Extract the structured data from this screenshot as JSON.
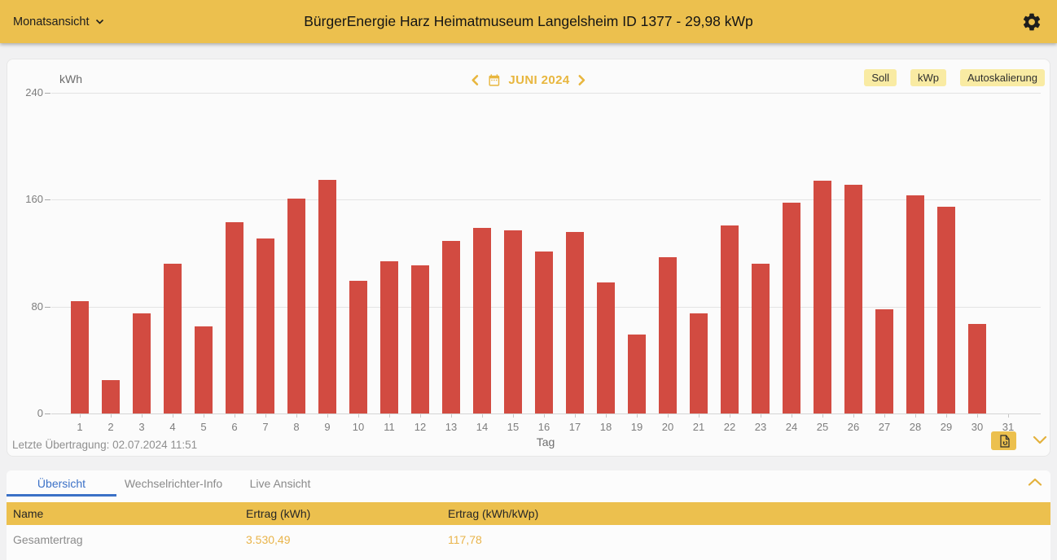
{
  "topbar": {
    "view_selector_label": "Monatsansicht",
    "title": "BürgerEnergie Harz Heimatmuseum Langelsheim ID 1377 - 29,98 kWp"
  },
  "chart_panel": {
    "unit_label": "kWh",
    "month_nav_label": "JUNI 2024",
    "button_soll": "Soll",
    "button_kwp": "kWp",
    "button_autoscale": "Autoskalierung",
    "xaxis_label": "Tag",
    "last_transmission": "Letzte Übertragung: 02.07.2024 11:51"
  },
  "chart_data": {
    "type": "bar",
    "title": "JUNI 2024",
    "xlabel": "Tag",
    "ylabel": "kWh",
    "ylim": [
      0,
      240
    ],
    "yticks": [
      0,
      80,
      160,
      240
    ],
    "grid": true,
    "legend": "none",
    "bar_color": "#d24b41",
    "categories": [
      1,
      2,
      3,
      4,
      5,
      6,
      7,
      8,
      9,
      10,
      11,
      12,
      13,
      14,
      15,
      16,
      17,
      18,
      19,
      20,
      21,
      22,
      23,
      24,
      25,
      26,
      27,
      28,
      29,
      30,
      31
    ],
    "values": [
      84,
      25,
      75,
      112,
      65,
      143,
      131,
      161,
      175,
      99,
      114,
      111,
      129,
      139,
      137,
      121,
      136,
      98,
      59,
      117,
      75,
      141,
      112,
      158,
      174,
      171,
      78,
      163,
      155,
      67,
      null
    ]
  },
  "tabs": [
    {
      "label": "Übersicht",
      "active": true
    },
    {
      "label": "Wechselrichter-Info",
      "active": false
    },
    {
      "label": "Live Ansicht",
      "active": false
    }
  ],
  "summary_table": {
    "headers": [
      "Name",
      "Ertrag (kWh)",
      "Ertrag (kWh/kWp)"
    ],
    "rows": [
      {
        "name": "Gesamtertrag",
        "ertrag_kwh": "3.530,49",
        "ertrag_kwh_kwp": "117,78"
      }
    ]
  },
  "colors": {
    "topbar_bg": "#ecc04e",
    "accent_gold": "#e8b63e",
    "bar_red": "#d24b41",
    "tab_active_blue": "#3b71c7",
    "value_gold": "#e9b44a",
    "button_light_yellow": "#f9eba3"
  }
}
